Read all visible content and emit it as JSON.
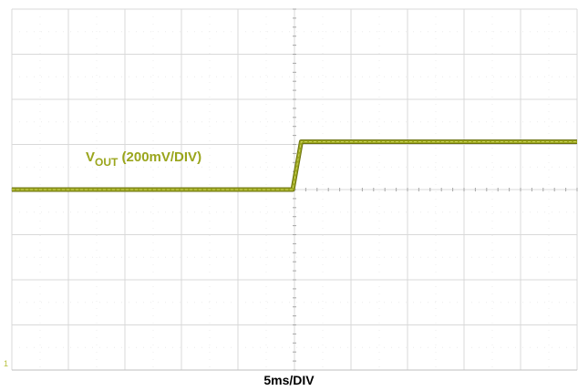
{
  "chart_data": {
    "type": "line",
    "title": "",
    "xlabel": "5ms/DIV",
    "ylabel": "",
    "grid": true,
    "x_divisions": 10,
    "y_divisions": 8,
    "xlim": [
      0,
      10
    ],
    "ylim": [
      -4,
      4
    ],
    "series": [
      {
        "name": "VOUT (200mV/DIV)",
        "name_main": "V",
        "name_sub": "OUT",
        "name_suffix": " (200mV/DIV)",
        "color": "#9aa51c",
        "x": [
          0,
          4.97,
          5.12,
          10
        ],
        "y": [
          0,
          0,
          1.06,
          1.06
        ]
      }
    ],
    "channel_marker": "1"
  }
}
